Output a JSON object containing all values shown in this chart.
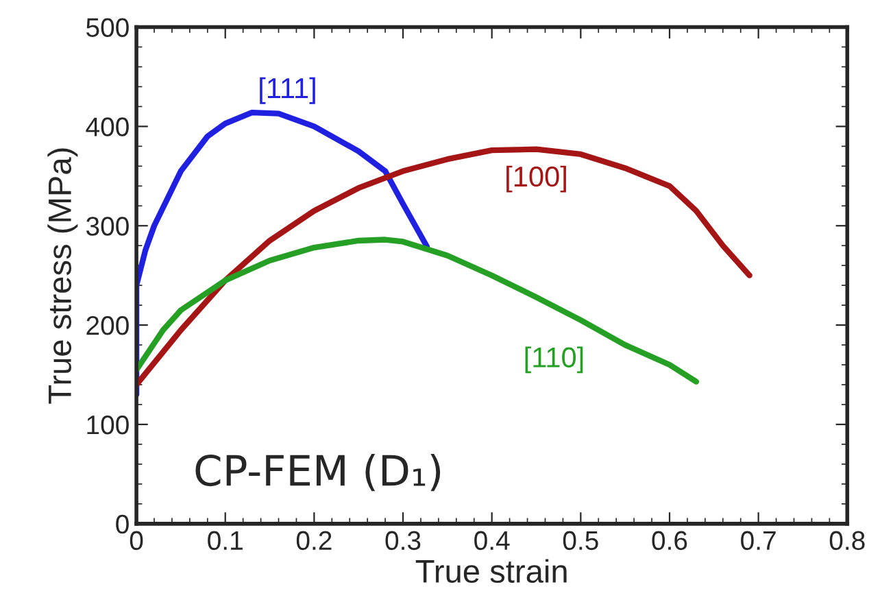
{
  "chart_data": {
    "type": "line",
    "xlabel": "True strain",
    "ylabel": "True stress (MPa)",
    "xlim": [
      0,
      0.8
    ],
    "xticks": [
      0,
      0.1,
      0.2,
      0.3,
      0.4,
      0.5,
      0.6,
      0.7,
      0.8
    ],
    "ylim": [
      0,
      500
    ],
    "yticks": [
      0,
      100,
      200,
      300,
      400,
      500
    ],
    "grid": false,
    "legend": false,
    "marker": "none",
    "line_style": "solid",
    "annotations": [
      "CP-FEM (D₁)"
    ],
    "series": [
      {
        "name": "[111]",
        "color": "#2020e0",
        "x": [
          0,
          0,
          0.01,
          0.02,
          0.05,
          0.08,
          0.1,
          0.13,
          0.16,
          0.2,
          0.25,
          0.28,
          0.3,
          0.327
        ],
        "values": [
          130,
          240,
          275,
          300,
          355,
          390,
          403,
          414,
          413,
          400,
          375,
          355,
          322,
          279
        ]
      },
      {
        "name": "[100]",
        "color": "#a51515",
        "x": [
          0,
          0.05,
          0.1,
          0.15,
          0.2,
          0.25,
          0.3,
          0.35,
          0.4,
          0.45,
          0.5,
          0.55,
          0.6,
          0.63,
          0.66,
          0.69
        ],
        "values": [
          140,
          195,
          245,
          285,
          315,
          338,
          355,
          367,
          376,
          377,
          372,
          358,
          340,
          315,
          280,
          250
        ]
      },
      {
        "name": "[110]",
        "color": "#25a025",
        "x": [
          0,
          0.03,
          0.05,
          0.1,
          0.15,
          0.2,
          0.25,
          0.28,
          0.3,
          0.35,
          0.4,
          0.45,
          0.5,
          0.55,
          0.6,
          0.63
        ],
        "values": [
          155,
          195,
          215,
          245,
          265,
          278,
          285,
          286,
          284,
          270,
          250,
          228,
          205,
          180,
          160,
          143
        ]
      }
    ]
  }
}
